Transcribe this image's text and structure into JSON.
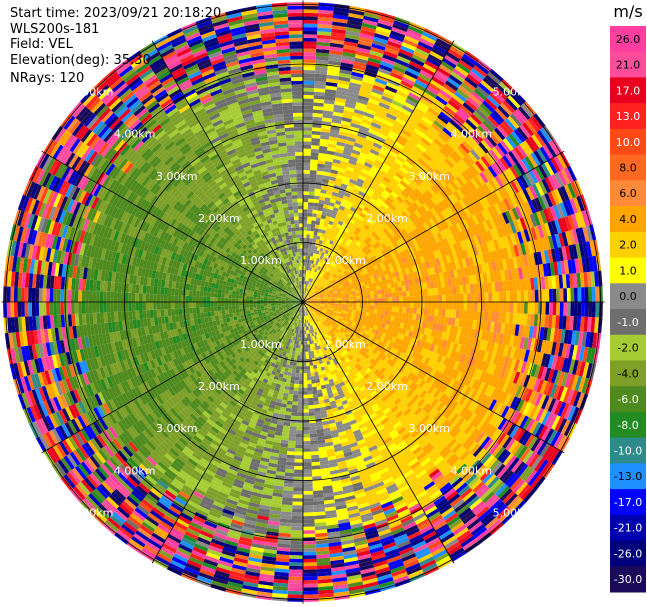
{
  "header": {
    "start_time": "Start time: 2023/09/21 20:18:20",
    "instrument": "WLS200s-181",
    "field": "Field: VEL",
    "elevation": "Elevation(deg): 35.30",
    "nrays": "NRays: 120"
  },
  "chart_data": {
    "type": "heatmap",
    "projection": "polar (PPI)",
    "field": "VEL",
    "units": "m/s",
    "n_rays": 120,
    "elevation_deg": 35.3,
    "range_rings_km": [
      1.0,
      2.0,
      3.0,
      4.0,
      5.0
    ],
    "ring_labels": [
      "1.00km",
      "2.00km",
      "3.00km",
      "4.00km",
      "5.00km"
    ],
    "colorbar": {
      "title": "m/s",
      "ticks": [
        "26.0",
        "21.0",
        "17.0",
        "13.0",
        "10.0",
        "8.0",
        "6.0",
        "4.0",
        "2.0",
        "1.0",
        "0.0",
        "-1.0",
        "-2.0",
        "-4.0",
        "-6.0",
        "-8.0",
        "-10.0",
        "-13.0",
        "-17.0",
        "-21.0",
        "-26.0",
        "-30.0"
      ],
      "bins": [
        {
          "min": 26,
          "max": 30,
          "color": "#ff3fa0"
        },
        {
          "min": 21,
          "max": 26,
          "color": "#ff4d9c"
        },
        {
          "min": 17,
          "max": 21,
          "color": "#e8001e"
        },
        {
          "min": 13,
          "max": 17,
          "color": "#ff2020"
        },
        {
          "min": 10,
          "max": 13,
          "color": "#ff4a18"
        },
        {
          "min": 8,
          "max": 10,
          "color": "#ff6a20"
        },
        {
          "min": 6,
          "max": 8,
          "color": "#ff8a38"
        },
        {
          "min": 4,
          "max": 6,
          "color": "#ffa500"
        },
        {
          "min": 2,
          "max": 4,
          "color": "#ffd000"
        },
        {
          "min": 1,
          "max": 2,
          "color": "#ffff00"
        },
        {
          "min": 0,
          "max": 1,
          "color": "#8a8a8a"
        },
        {
          "min": -1,
          "max": 0,
          "color": "#6e6e6e"
        },
        {
          "min": -2,
          "max": -1,
          "color": "#a6cc33"
        },
        {
          "min": -4,
          "max": -2,
          "color": "#7ea028"
        },
        {
          "min": -6,
          "max": -4,
          "color": "#4f8a1e"
        },
        {
          "min": -8,
          "max": -6,
          "color": "#228b22"
        },
        {
          "min": -10,
          "max": -8,
          "color": "#2e8b8b"
        },
        {
          "min": -13,
          "max": -10,
          "color": "#1e90ff"
        },
        {
          "min": -17,
          "max": -13,
          "color": "#0000ff"
        },
        {
          "min": -21,
          "max": -17,
          "color": "#0000b0"
        },
        {
          "min": -26,
          "max": -21,
          "color": "#00007a"
        },
        {
          "min": -30,
          "max": -26,
          "color": "#1a0a5a"
        }
      ]
    }
  }
}
